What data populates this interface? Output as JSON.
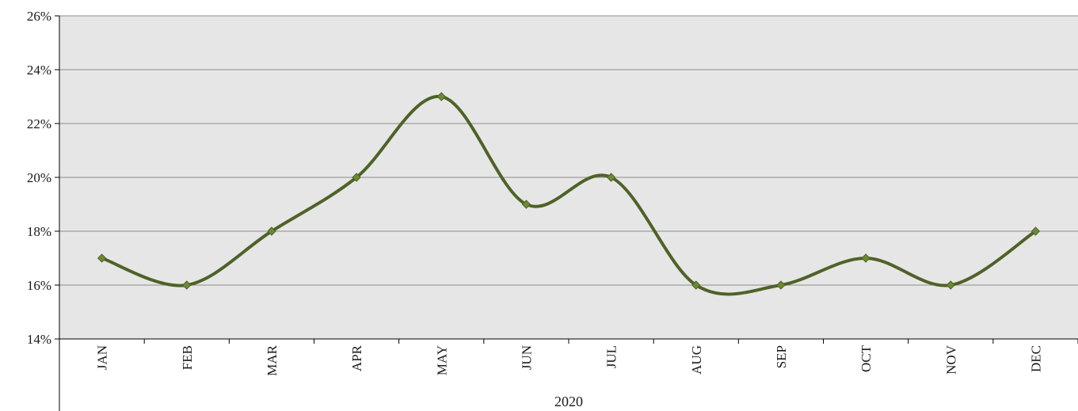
{
  "chart_data": {
    "type": "line",
    "categories": [
      "JAN",
      "FEB",
      "MAR",
      "APR",
      "MAY",
      "JUN",
      "JUL",
      "AUG",
      "SEP",
      "OCT",
      "NOV",
      "DEC"
    ],
    "group_label": "2020",
    "series": [
      {
        "values": [
          17,
          16,
          18,
          20,
          23,
          19,
          20,
          16,
          16,
          17,
          16,
          18
        ]
      }
    ],
    "ylim": [
      14,
      26
    ],
    "yticks": [
      14,
      16,
      18,
      20,
      22,
      24,
      26
    ],
    "ytick_labels": [
      "14%",
      "16%",
      "18%",
      "20%",
      "22%",
      "24%",
      "26%"
    ],
    "grid": true,
    "smooth": true,
    "colors": {
      "line": "#4f6228",
      "plot_bg": "#e6e6e6",
      "grid": "#8c8c8c",
      "axis": "#000000"
    }
  }
}
